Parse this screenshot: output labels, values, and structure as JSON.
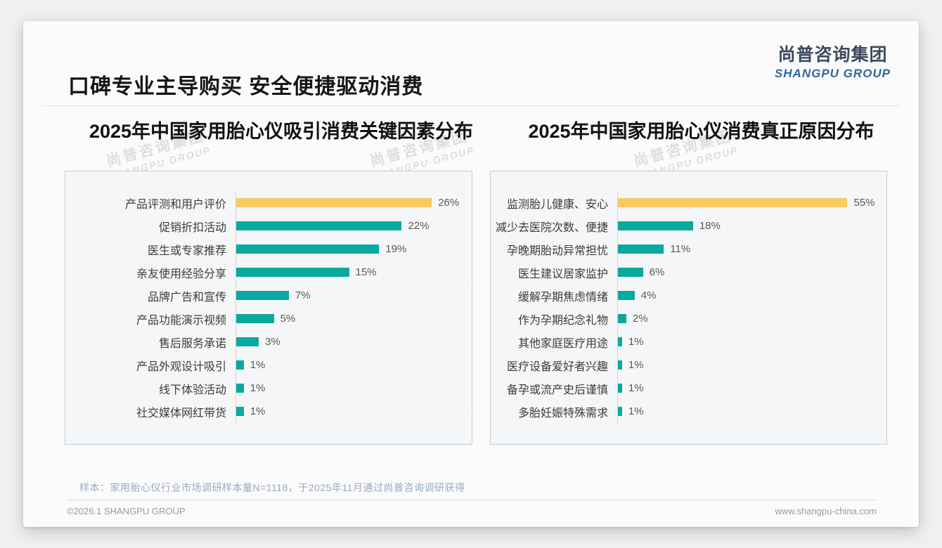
{
  "page": {
    "title": "口碑专业主导购买 安全便捷驱动消费",
    "logo": {
      "cn": "尚普咨询集团",
      "en": "SHANGPU GROUP"
    },
    "watermark": {
      "cn": "尚普咨询集团",
      "en": "SHANGPU GROUP"
    },
    "note": "样本：家用胎心仪行业市场调研样本量N=1118，于2025年11月通过尚普咨询调研获得",
    "footer_left": "©2026.1 SHANGPU GROUP",
    "footer_right": "www.shangpu-china.com"
  },
  "colors": {
    "bar_teal": "#0aa9a0",
    "bar_highlight_yellow": "#f9ca60",
    "logo_blue": "#30669c",
    "panel_border": "#bccedb"
  },
  "chart_data": [
    {
      "type": "bar",
      "orientation": "horizontal",
      "title": "2025年中国家用胎心仪吸引消费关键因素分布",
      "categories": [
        "产品评测和用户评价",
        "促销折扣活动",
        "医生或专家推荐",
        "亲友使用经验分享",
        "品牌广告和宣传",
        "产品功能演示视频",
        "售后服务承诺",
        "产品外观设计吸引",
        "线下体验活动",
        "社交媒体网红带货"
      ],
      "values": [
        26,
        22,
        19,
        15,
        7,
        5,
        3,
        1,
        1,
        1
      ],
      "value_labels": [
        "26%",
        "22%",
        "19%",
        "15%",
        "7%",
        "5%",
        "3%",
        "1%",
        "1%",
        "1%"
      ],
      "highlight_index": 0,
      "xlim": [
        0,
        30
      ],
      "grid": false,
      "legend": false
    },
    {
      "type": "bar",
      "orientation": "horizontal",
      "title": "2025年中国家用胎心仪消费真正原因分布",
      "categories": [
        "监测胎儿健康、安心",
        "减少去医院次数、便捷",
        "孕晚期胎动异常担忧",
        "医生建议居家监护",
        "缓解孕期焦虑情绪",
        "作为孕期纪念礼物",
        "其他家庭医疗用途",
        "医疗设备爱好者兴趣",
        "备孕或流产史后谨慎",
        "多胎妊娠特殊需求"
      ],
      "values": [
        55,
        18,
        11,
        6,
        4,
        2,
        1,
        1,
        1,
        1
      ],
      "value_labels": [
        "55%",
        "18%",
        "11%",
        "6%",
        "4%",
        "2%",
        "1%",
        "1%",
        "1%",
        "1%"
      ],
      "highlight_index": 0,
      "xlim": [
        0,
        62
      ],
      "grid": false,
      "legend": false
    }
  ]
}
